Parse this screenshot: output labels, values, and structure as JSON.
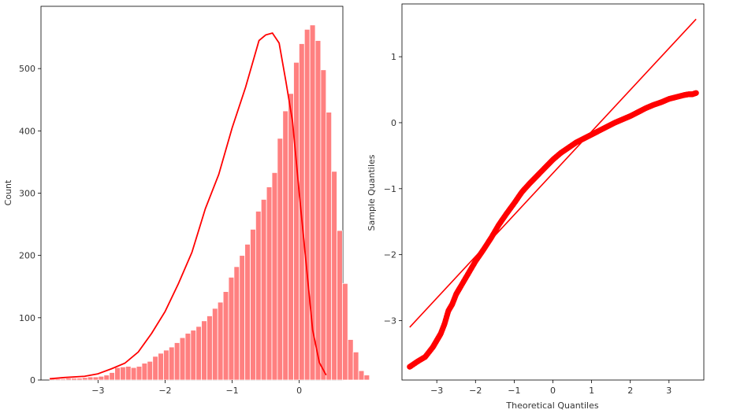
{
  "chart_data": [
    {
      "type": "bar",
      "subtype": "histogram-with-kde",
      "title": "",
      "xlabel": "",
      "ylabel": "Count",
      "xlim": [
        -3.85,
        0.65
      ],
      "ylim": [
        0,
        600
      ],
      "xticks": [
        -3,
        -2,
        -1,
        0
      ],
      "xtick_labels": [
        "−3",
        "−2",
        "−1",
        "0"
      ],
      "yticks": [
        0,
        100,
        200,
        300,
        400,
        500
      ],
      "ytick_labels": [
        "0",
        "100",
        "200",
        "300",
        "400",
        "500"
      ],
      "bin_start": -3.72,
      "bin_width": 0.0808,
      "counts": [
        2,
        2,
        2,
        3,
        3,
        3,
        4,
        5,
        5,
        6,
        8,
        12,
        20,
        21,
        22,
        20,
        22,
        27,
        30,
        38,
        43,
        48,
        53,
        60,
        68,
        75,
        80,
        86,
        95,
        103,
        115,
        125,
        142,
        165,
        182,
        200,
        218,
        242,
        271,
        290,
        310,
        333,
        388,
        432,
        460,
        510,
        540,
        563,
        570,
        545,
        498,
        430,
        335,
        240,
        155,
        65,
        45,
        15,
        8
      ],
      "bar_color": "#ff8080",
      "bar_edge_color": "#ffffff",
      "kde": {
        "color": "#ff0000",
        "x": [
          -3.72,
          -3.5,
          -3.2,
          -3.0,
          -2.8,
          -2.6,
          -2.4,
          -2.2,
          -2.0,
          -1.8,
          -1.6,
          -1.4,
          -1.2,
          -1.0,
          -0.8,
          -0.6,
          -0.5,
          -0.4,
          -0.3,
          -0.2,
          -0.1,
          0.0,
          0.1,
          0.2,
          0.3,
          0.4
        ],
        "y": [
          2,
          4,
          6,
          10,
          18,
          27,
          45,
          75,
          110,
          155,
          205,
          275,
          330,
          405,
          470,
          545,
          554,
          557,
          541,
          480,
          415,
          300,
          190,
          80,
          28,
          8
        ]
      },
      "grid": false
    },
    {
      "type": "scatter",
      "subtype": "qq-plot",
      "title": "",
      "xlabel": "Theoretical Quantiles",
      "ylabel": "Sample Quantiles",
      "xlim": [
        -3.9,
        3.9
      ],
      "ylim": [
        -3.9,
        1.8
      ],
      "xticks": [
        -3,
        -2,
        -1,
        0,
        1,
        2,
        3
      ],
      "xtick_labels": [
        "−3",
        "−2",
        "−1",
        "0",
        "1",
        "2",
        "3"
      ],
      "yticks": [
        -3,
        -2,
        -1,
        0,
        1
      ],
      "ytick_labels": [
        "−3",
        "−2",
        "−1",
        "0",
        "1"
      ],
      "marker_color": "#ff0000",
      "points": [
        [
          -3.7,
          -3.7
        ],
        [
          -3.5,
          -3.62
        ],
        [
          -3.3,
          -3.55
        ],
        [
          -3.1,
          -3.4
        ],
        [
          -3.0,
          -3.3
        ],
        [
          -2.9,
          -3.2
        ],
        [
          -2.8,
          -3.05
        ],
        [
          -2.7,
          -2.85
        ],
        [
          -2.6,
          -2.75
        ],
        [
          -2.5,
          -2.6
        ],
        [
          -2.4,
          -2.5
        ],
        [
          -2.2,
          -2.3
        ],
        [
          -2.0,
          -2.1
        ],
        [
          -1.8,
          -1.93
        ],
        [
          -1.6,
          -1.75
        ],
        [
          -1.4,
          -1.55
        ],
        [
          -1.2,
          -1.38
        ],
        [
          -1.0,
          -1.22
        ],
        [
          -0.8,
          -1.05
        ],
        [
          -0.6,
          -0.92
        ],
        [
          -0.4,
          -0.8
        ],
        [
          -0.2,
          -0.68
        ],
        [
          0.0,
          -0.56
        ],
        [
          0.2,
          -0.46
        ],
        [
          0.4,
          -0.38
        ],
        [
          0.6,
          -0.3
        ],
        [
          0.8,
          -0.24
        ],
        [
          1.0,
          -0.18
        ],
        [
          1.2,
          -0.12
        ],
        [
          1.4,
          -0.06
        ],
        [
          1.6,
          0.0
        ],
        [
          1.8,
          0.05
        ],
        [
          2.0,
          0.1
        ],
        [
          2.2,
          0.16
        ],
        [
          2.4,
          0.22
        ],
        [
          2.6,
          0.27
        ],
        [
          2.8,
          0.31
        ],
        [
          3.0,
          0.36
        ],
        [
          3.2,
          0.39
        ],
        [
          3.4,
          0.42
        ],
        [
          3.5,
          0.43
        ],
        [
          3.6,
          0.43
        ],
        [
          3.7,
          0.45
        ]
      ],
      "reference_line": {
        "color": "#ff0000",
        "x": [
          -3.7,
          3.7
        ],
        "y": [
          -3.1,
          1.57
        ]
      },
      "grid": false
    }
  ]
}
